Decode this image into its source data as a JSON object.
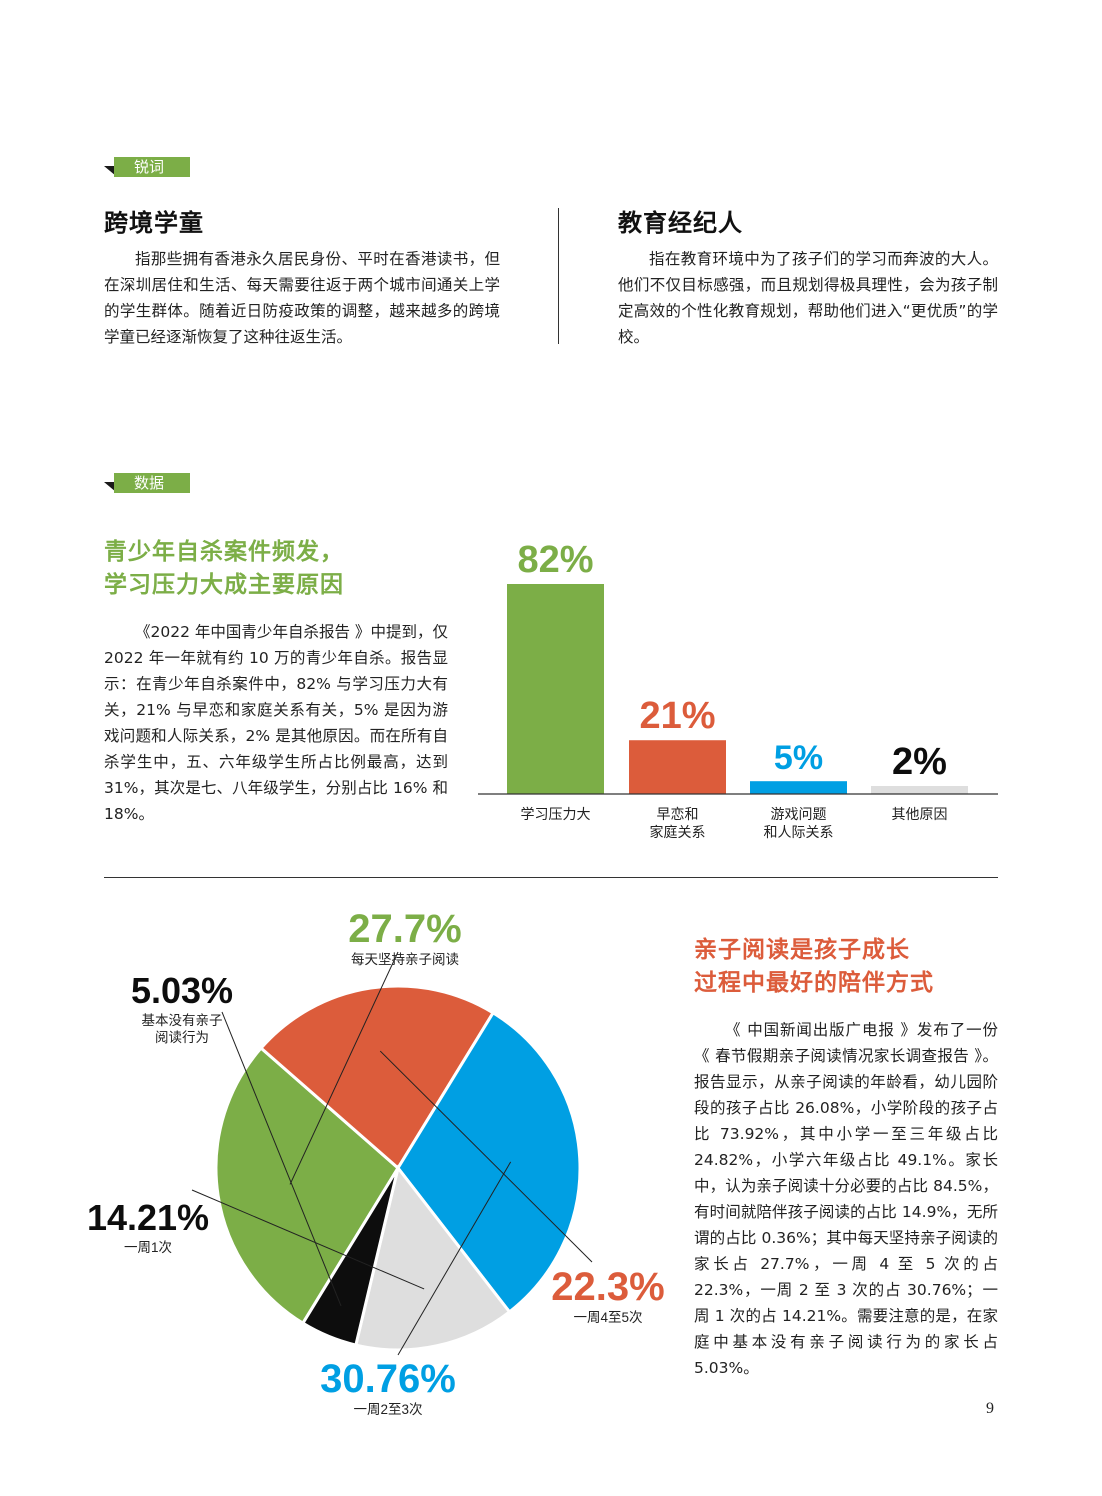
{
  "tags": {
    "glossary": "锐词",
    "data": "数据"
  },
  "terms": [
    {
      "title": "跨境学童",
      "text": "指那些拥有香港永久居民身份、平时在香港读书，但在深圳居住和生活、每天需要往返于两个城市间通关上学的学生群体。随着近日防疫政策的调整，越来越多的跨境学童已经逐渐恢复了这种往返生活。"
    },
    {
      "title": "教育经纪人",
      "text": "指在教育环境中为了孩子们的学习而奔波的大人。他们不仅目标感强，而且规划得极具理性，会为孩子制定高效的个性化教育规划，帮助他们进入“更优质”的学校。"
    }
  ],
  "suicide_section": {
    "title_line1": "青少年自杀案件频发，",
    "title_line2": "学习压力大成主要原因",
    "text": "《2022 年中国青少年自杀报告 》中提到，仅 2022 年一年就有约 10 万的青少年自杀。报告显示：在青少年自杀案件中，82% 与学习压力大有关，21% 与早恋和家庭关系有关，5% 是因为游戏问题和人际关系，2% 是其他原因。而在所有自杀学生中，五、六年级学生所占比例最高，达到 31%，其次是七、八年级学生，分别占比 16% 和18%。"
  },
  "reading_section": {
    "title_line1": "亲子阅读是孩子成长",
    "title_line2": "过程中最好的陪伴方式",
    "text": "《 中国新闻出版广电报 》发布了一份《 春节假期亲子阅读情况家长调查报告 》。报告显示，从亲子阅读的年龄看，幼儿园阶段的孩子占比 26.08%，小学阶段的孩子占比 73.92%，其中小学一至三年级占比 24.82%，小学六年级占比 49.1%。家长中，认为亲子阅读十分必要的占比 84.5%，有时间就陪伴孩子阅读的占比 14.9%，无所谓的占比 0.36%；其中每天坚持亲子阅读的家长占 27.7%，一周 4 至 5 次的占 22.3%，一周 2 至 3 次的占 30.76%；一周 1 次的占 14.21%。需要注意的是，在家庭中基本没有亲子阅读行为的家长占 5.03%。"
  },
  "colors": {
    "green": "#7cae47",
    "orange": "#dc5c3b",
    "blue": "#009fe3",
    "gray": "#dedede",
    "black": "#0d0d0d",
    "accent_title_orange": "#dc5c3b"
  },
  "chart_data": [
    {
      "type": "bar",
      "categories": [
        "学习压力大",
        "早恋和家庭关系",
        "游戏问题和人际关系",
        "其他原因"
      ],
      "category_lines": [
        [
          "学习压力大"
        ],
        [
          "早恋和",
          "家庭关系"
        ],
        [
          "游戏问题",
          "和人际关系"
        ],
        [
          "其他原因"
        ]
      ],
      "values": [
        82,
        21,
        5,
        2
      ],
      "value_labels": [
        "82%",
        "21%",
        "5%",
        "2%"
      ],
      "colors": [
        "#7cae47",
        "#dc5c3b",
        "#009fe3",
        "#dedede"
      ],
      "label_colors": [
        "#7cae47",
        "#dc5c3b",
        "#009fe3",
        "#0d0d0d"
      ],
      "ylim": [
        0,
        82
      ],
      "title": "",
      "xlabel": "",
      "ylabel": ""
    },
    {
      "type": "pie",
      "labels": [
        "每天坚持亲子阅读",
        "一周4至5次",
        "一周2至3次",
        "一周1次",
        "基本没有亲子阅读行为"
      ],
      "label_lines": [
        [
          "每天坚持亲子阅读"
        ],
        [
          "一周4至5次"
        ],
        [
          "一周2至3次"
        ],
        [
          "一周1次"
        ],
        [
          "基本没有亲子",
          "阅读行为"
        ]
      ],
      "values": [
        27.7,
        22.3,
        30.76,
        14.21,
        5.03
      ],
      "value_labels": [
        "27.7%",
        "22.3%",
        "30.76%",
        "14.21%",
        "5.03%"
      ],
      "colors": [
        "#7cae47",
        "#dc5c3b",
        "#009fe3",
        "#dedede",
        "#0d0d0d"
      ],
      "label_colors": [
        "#7cae47",
        "#dc5c3b",
        "#009fe3",
        "#0d0d0d",
        "#0d0d0d"
      ]
    }
  ],
  "page_number": "9"
}
